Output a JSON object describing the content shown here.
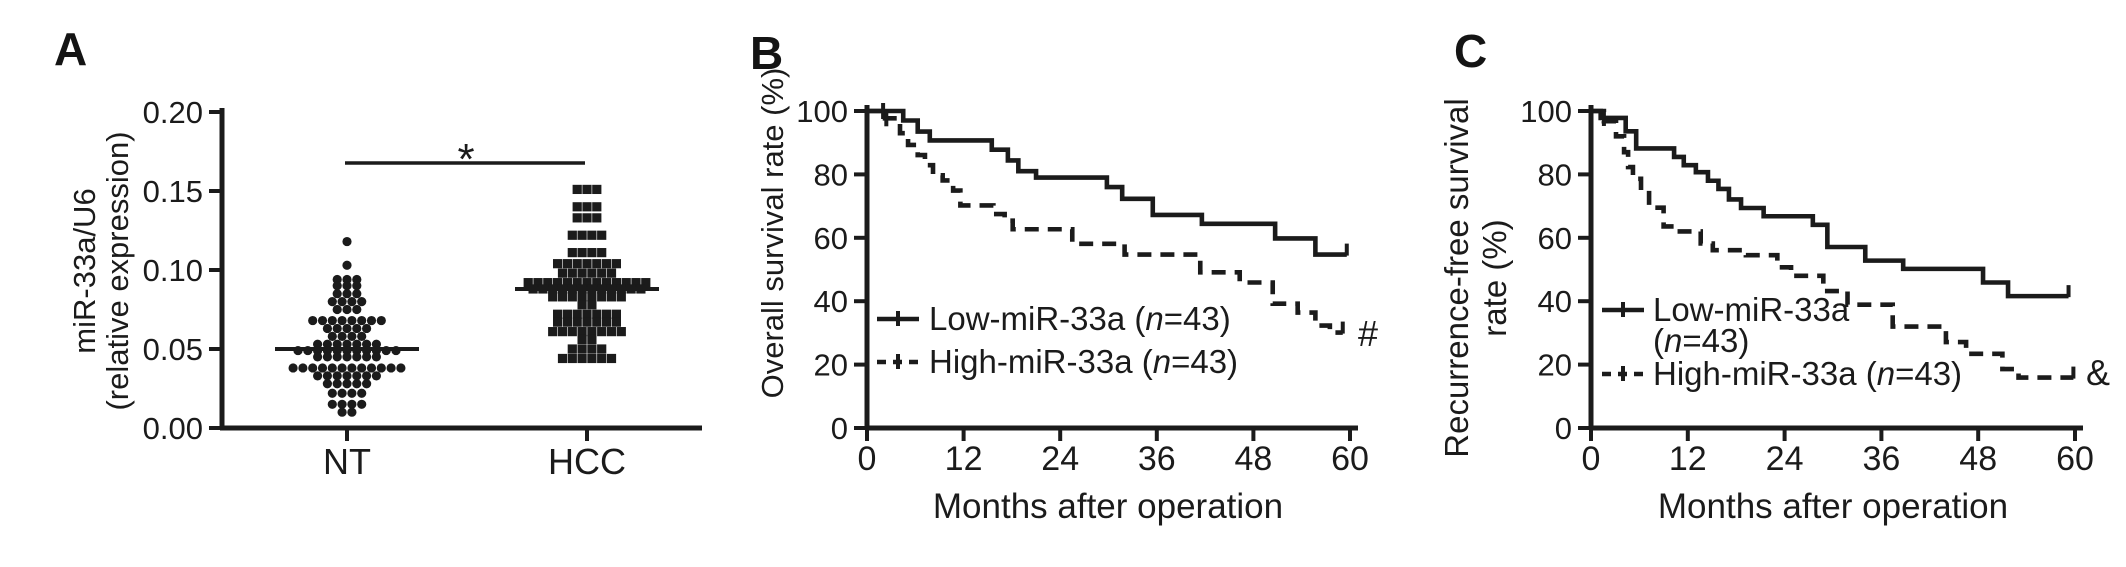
{
  "figure": {
    "background": "#ffffff",
    "ink_color": "#1b1b1b",
    "panel_letters": {
      "a": "A",
      "b": "B",
      "c": "C"
    }
  },
  "chart_data": [
    {
      "panel": "A",
      "type": "scatter",
      "subtype": "column-scatter-beeswarm",
      "ylabel_lines": [
        "miR-33a/U6",
        "(relative expression)"
      ],
      "ylim": [
        0,
        0.2
      ],
      "yticks": [
        {
          "v": 0.0,
          "label": "0.00"
        },
        {
          "v": 0.05,
          "label": "0.05"
        },
        {
          "v": 0.1,
          "label": "0.10"
        },
        {
          "v": 0.15,
          "label": "0.15"
        },
        {
          "v": 0.2,
          "label": "0.20"
        }
      ],
      "categories": [
        "NT",
        "HCC"
      ],
      "significance": {
        "symbol": "*",
        "bar_y_value": 0.167
      },
      "groups": [
        {
          "name": "NT",
          "marker": "circle",
          "median": 0.05,
          "rows": [
            {
              "v": 0.118,
              "n": 1
            },
            {
              "v": 0.103,
              "n": 1
            },
            {
              "v": 0.094,
              "n": 3
            },
            {
              "v": 0.09,
              "n": 3
            },
            {
              "v": 0.085,
              "n": 3
            },
            {
              "v": 0.08,
              "n": 4
            },
            {
              "v": 0.075,
              "n": 3
            },
            {
              "v": 0.068,
              "n": 8
            },
            {
              "v": 0.063,
              "n": 5
            },
            {
              "v": 0.058,
              "n": 4
            },
            {
              "v": 0.053,
              "n": 7
            },
            {
              "v": 0.049,
              "n": 11
            },
            {
              "v": 0.045,
              "n": 7
            },
            {
              "v": 0.038,
              "n": 12
            },
            {
              "v": 0.033,
              "n": 7
            },
            {
              "v": 0.028,
              "n": 5
            },
            {
              "v": 0.022,
              "n": 4
            },
            {
              "v": 0.015,
              "n": 4
            },
            {
              "v": 0.01,
              "n": 2
            }
          ]
        },
        {
          "name": "HCC",
          "marker": "square",
          "median": 0.088,
          "rows": [
            {
              "v": 0.151,
              "n": 3
            },
            {
              "v": 0.14,
              "n": 3
            },
            {
              "v": 0.133,
              "n": 3
            },
            {
              "v": 0.122,
              "n": 4
            },
            {
              "v": 0.111,
              "n": 4
            },
            {
              "v": 0.104,
              "n": 7
            },
            {
              "v": 0.098,
              "n": 6
            },
            {
              "v": 0.092,
              "n": 13
            },
            {
              "v": 0.088,
              "n": 12
            },
            {
              "v": 0.083,
              "n": 8
            },
            {
              "v": 0.078,
              "n": 2
            },
            {
              "v": 0.072,
              "n": 7
            },
            {
              "v": 0.067,
              "n": 7
            },
            {
              "v": 0.061,
              "n": 8
            },
            {
              "v": 0.056,
              "n": 2
            },
            {
              "v": 0.05,
              "n": 4
            },
            {
              "v": 0.044,
              "n": 6
            }
          ]
        }
      ]
    },
    {
      "panel": "B",
      "type": "line",
      "subtype": "kaplan-meier",
      "ylabel": "Overall survival rate (%)",
      "xlabel": "Months after operation",
      "xlim": [
        0,
        60
      ],
      "ylim": [
        0,
        100
      ],
      "xticks": [
        {
          "v": 0,
          "label": "0"
        },
        {
          "v": 12,
          "label": "12"
        },
        {
          "v": 24,
          "label": "24"
        },
        {
          "v": 36,
          "label": "36"
        },
        {
          "v": 48,
          "label": "48"
        },
        {
          "v": 60,
          "label": "60"
        }
      ],
      "yticks": [
        {
          "v": 0,
          "label": "0"
        },
        {
          "v": 20,
          "label": "20"
        },
        {
          "v": 40,
          "label": "40"
        },
        {
          "v": 60,
          "label": "60"
        },
        {
          "v": 80,
          "label": "80"
        },
        {
          "v": 100,
          "label": "100"
        }
      ],
      "series": [
        {
          "name": "Low-miR-33a",
          "n": 43,
          "legend_lines": [
            [
              "Low-miR-33a (",
              "n",
              "=43)"
            ]
          ],
          "style": "solid",
          "steps": [
            [
              0,
              100
            ],
            [
              4.5,
              97
            ],
            [
              6.3,
              93.5
            ],
            [
              7.8,
              90.7
            ],
            [
              15.5,
              87.8
            ],
            [
              17.5,
              84.4
            ],
            [
              18.8,
              81
            ],
            [
              21,
              79
            ],
            [
              29.8,
              76
            ],
            [
              31.7,
              72.3
            ],
            [
              35.5,
              67.2
            ],
            [
              41.6,
              64.4
            ],
            [
              50.7,
              59.8
            ],
            [
              55.7,
              54.7
            ]
          ],
          "end_time": 59.6,
          "censor_marks": [
            [
              2,
              100
            ]
          ],
          "end_tick": true,
          "annotation": null
        },
        {
          "name": "High-miR-33a",
          "n": 43,
          "legend_lines": [
            [
              "High-miR-33a (",
              "n",
              "=43)"
            ]
          ],
          "style": "dashed",
          "steps": [
            [
              0,
              100
            ],
            [
              1.9,
              97.7
            ],
            [
              4.1,
              93
            ],
            [
              5.1,
              89.3
            ],
            [
              6.3,
              86.1
            ],
            [
              7.2,
              82.9
            ],
            [
              8.2,
              79.7
            ],
            [
              9.4,
              78.1
            ],
            [
              10.7,
              74.9
            ],
            [
              11.6,
              70.2
            ],
            [
              15.7,
              67.5
            ],
            [
              17.1,
              65.4
            ],
            [
              18.1,
              62.7
            ],
            [
              25.5,
              58.1
            ],
            [
              32,
              54.7
            ],
            [
              41.4,
              49.1
            ],
            [
              46.3,
              45.9
            ],
            [
              50.4,
              39.2
            ],
            [
              53.5,
              36.4
            ],
            [
              55.7,
              32.3
            ],
            [
              57.5,
              30.1
            ]
          ],
          "end_time": 59.1,
          "censor_marks": [
            [
              2.4,
              97.7
            ]
          ],
          "end_tick": true,
          "annotation": "#"
        }
      ]
    },
    {
      "panel": "C",
      "type": "line",
      "subtype": "kaplan-meier",
      "ylabel_lines": [
        "Recurrence-free survival",
        "rate (%)"
      ],
      "xlabel": "Months after operation",
      "xlim": [
        0,
        60
      ],
      "ylim": [
        0,
        100
      ],
      "xticks": [
        {
          "v": 0,
          "label": "0"
        },
        {
          "v": 12,
          "label": "12"
        },
        {
          "v": 24,
          "label": "24"
        },
        {
          "v": 36,
          "label": "36"
        },
        {
          "v": 48,
          "label": "48"
        },
        {
          "v": 60,
          "label": "60"
        }
      ],
      "yticks": [
        {
          "v": 0,
          "label": "0"
        },
        {
          "v": 20,
          "label": "20"
        },
        {
          "v": 40,
          "label": "40"
        },
        {
          "v": 60,
          "label": "60"
        },
        {
          "v": 80,
          "label": "80"
        },
        {
          "v": 100,
          "label": "100"
        }
      ],
      "series": [
        {
          "name": "Low-miR-33a",
          "n": 43,
          "legend_lines": [
            [
              "Low-miR-33a"
            ],
            [
              "(",
              "n",
              "=43)"
            ]
          ],
          "style": "solid",
          "steps": [
            [
              0,
              100
            ],
            [
              1.2,
              97.8
            ],
            [
              4.3,
              93.6
            ],
            [
              5.6,
              88.2
            ],
            [
              10.3,
              85.5
            ],
            [
              11.5,
              82.9
            ],
            [
              13,
              80.7
            ],
            [
              14.5,
              78
            ],
            [
              15.8,
              75.4
            ],
            [
              17.1,
              72.1
            ],
            [
              18.6,
              69.4
            ],
            [
              21.4,
              66.8
            ],
            [
              27.5,
              64.1
            ],
            [
              29.3,
              57.1
            ],
            [
              34,
              52.8
            ],
            [
              38.7,
              50.2
            ],
            [
              48.6,
              45.9
            ],
            [
              51.7,
              41.6
            ]
          ],
          "end_time": 59.2,
          "censor_marks": [
            [
              1.6,
              97.8
            ]
          ],
          "end_tick": true,
          "annotation": null
        },
        {
          "name": "High-miR-33a",
          "n": 43,
          "legend_lines": [
            [
              "High-miR-33a (",
              "n",
              "=43)"
            ]
          ],
          "style": "dashed",
          "steps": [
            [
              0,
              100
            ],
            [
              1.6,
              96.8
            ],
            [
              3.1,
              92
            ],
            [
              4.1,
              87
            ],
            [
              4.6,
              82.3
            ],
            [
              5.2,
              78.6
            ],
            [
              6.2,
              74.8
            ],
            [
              7.2,
              69.5
            ],
            [
              9,
              63.6
            ],
            [
              10.5,
              62
            ],
            [
              13.6,
              58.2
            ],
            [
              15.1,
              56.1
            ],
            [
              19.2,
              54.5
            ],
            [
              23.1,
              50.7
            ],
            [
              24.8,
              48
            ],
            [
              28.8,
              43.2
            ],
            [
              31.8,
              38.9
            ],
            [
              37.4,
              32
            ],
            [
              44,
              27.1
            ],
            [
              46.5,
              23.4
            ],
            [
              51,
              18.6
            ],
            [
              53,
              15.9
            ]
          ],
          "end_time": 59.8,
          "censor_marks": [],
          "end_tick": true,
          "annotation": "&"
        }
      ]
    }
  ]
}
